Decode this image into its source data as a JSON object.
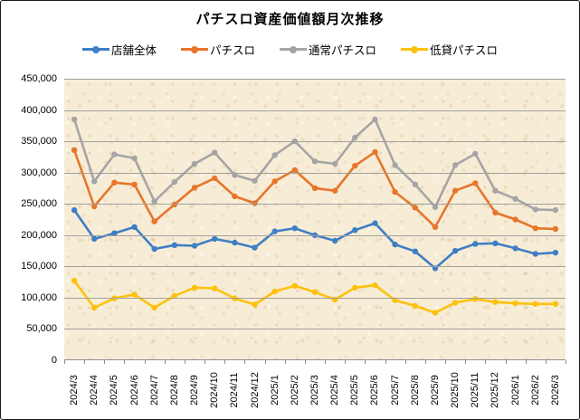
{
  "chart_data": {
    "type": "line",
    "title": "パチスロ資産価値額月次推移",
    "categories": [
      "2024/3",
      "2024/4",
      "2024/5",
      "2024/6",
      "2024/7",
      "2024/8",
      "2024/9",
      "2024/10",
      "2024/11",
      "2024/12",
      "2025/1",
      "2025/2",
      "2025/3",
      "2025/4",
      "2025/5",
      "2025/6",
      "2025/7",
      "2025/8",
      "2025/9",
      "2025/10",
      "2025/11",
      "2025/12",
      "2026/1",
      "2026/2",
      "2026/3"
    ],
    "series": [
      {
        "name": "店舗全体",
        "color": "#3f7ec5",
        "values": [
          240000,
          194000,
          203000,
          213000,
          178000,
          184000,
          183000,
          194000,
          188000,
          180000,
          206000,
          211000,
          200000,
          191000,
          208000,
          219000,
          185000,
          174000,
          147000,
          175000,
          186000,
          187000,
          179000,
          170000,
          172000
        ]
      },
      {
        "name": "パチスロ",
        "color": "#e8752b",
        "values": [
          336000,
          246000,
          284000,
          281000,
          222000,
          249000,
          276000,
          291000,
          262000,
          251000,
          286000,
          304000,
          275000,
          271000,
          311000,
          333000,
          269000,
          244000,
          213000,
          271000,
          283000,
          236000,
          225000,
          211000,
          210000
        ]
      },
      {
        "name": "通常パチスロ",
        "color": "#a5a5a5",
        "values": [
          385000,
          286000,
          329000,
          323000,
          254000,
          285000,
          314000,
          332000,
          296000,
          287000,
          328000,
          350000,
          318000,
          314000,
          356000,
          385000,
          312000,
          281000,
          245000,
          312000,
          330000,
          271000,
          258000,
          241000,
          240000
        ]
      },
      {
        "name": "低貸パチスロ",
        "color": "#fec10d",
        "values": [
          127000,
          84000,
          99000,
          105000,
          84000,
          103000,
          116000,
          115000,
          99000,
          89000,
          110000,
          119000,
          109000,
          97000,
          116000,
          120000,
          96000,
          87000,
          76000,
          92000,
          98000,
          93000,
          91000,
          90000,
          90000
        ]
      }
    ],
    "xlabel": "",
    "ylabel": "",
    "ylim": [
      0,
      450000
    ],
    "y_tick_step": 50000,
    "y_tick_labels": [
      "450,000",
      "400,000",
      "350,000",
      "300,000",
      "250,000",
      "200,000",
      "150,000",
      "100,000",
      "50,000",
      "0"
    ],
    "grid": true,
    "legend_position": "top"
  },
  "colors": {
    "plot_background": "#f7edd6",
    "gridline": "#a0a09b",
    "axis": "#8f8f8f",
    "frame_border": "#1a1a1a",
    "text": "#000000"
  }
}
